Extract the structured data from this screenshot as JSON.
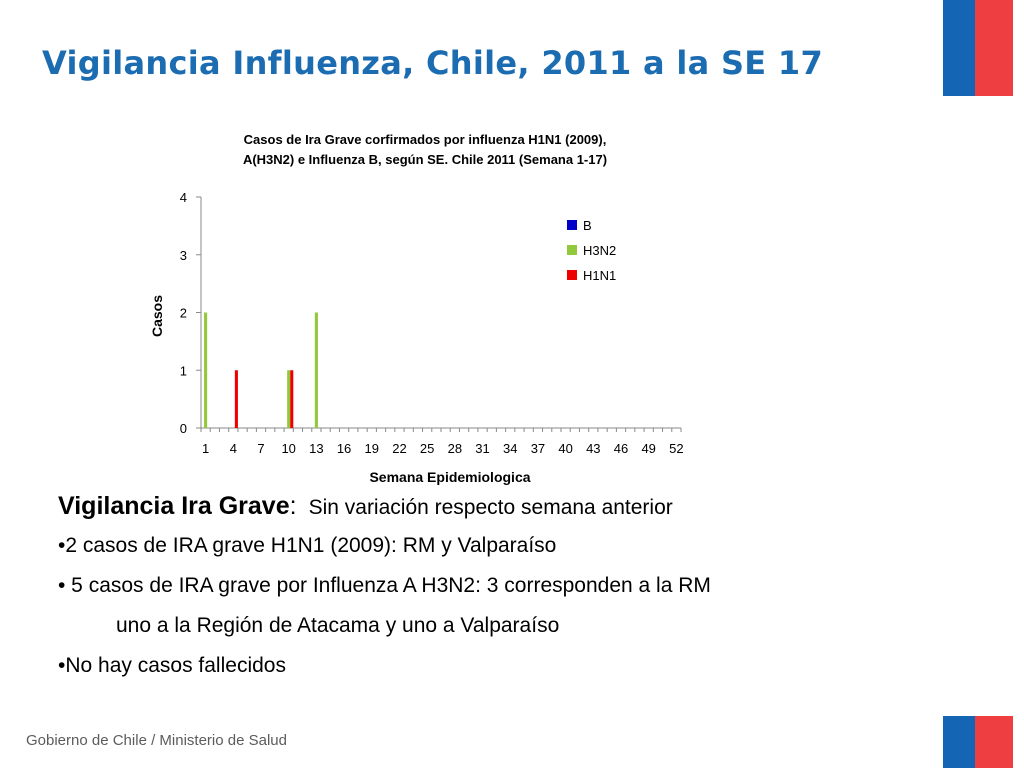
{
  "slide": {
    "title": "Vigilancia Influenza, Chile, 2011 a la SE 17",
    "footer": "Gobierno de Chile / Ministerio de Salud"
  },
  "colors": {
    "title": "#1b6cb1",
    "flag_blue": "#1565b5",
    "flag_red": "#ee3e42",
    "series_B": "#0000c8",
    "series_H3N2": "#92c83c",
    "series_H1N1": "#ee0000"
  },
  "chart_data": {
    "type": "bar",
    "title_lines": [
      "Casos de Ira Grave corfirmados por influenza H1N1 (2009),",
      "A(H3N2) e Influenza B, según SE. Chile 2011 (Semana 1-17)"
    ],
    "xlabel": "Semana Epidemiologica",
    "ylabel": "Casos",
    "ylim": [
      0,
      4
    ],
    "y_ticks": [
      "0",
      "1",
      "2",
      "3",
      "4"
    ],
    "x_range": [
      1,
      52
    ],
    "x_tick_labels": [
      "1",
      "4",
      "7",
      "10",
      "13",
      "16",
      "19",
      "22",
      "25",
      "28",
      "31",
      "34",
      "37",
      "40",
      "43",
      "46",
      "49",
      "52"
    ],
    "legend_position": "right",
    "grid": false,
    "series": [
      {
        "name": "B",
        "color": "#0000c8",
        "points": []
      },
      {
        "name": "H3N2",
        "color": "#92c83c",
        "points": [
          {
            "x": 1,
            "y": 2
          },
          {
            "x": 10,
            "y": 1
          },
          {
            "x": 13,
            "y": 2
          }
        ]
      },
      {
        "name": "H1N1",
        "color": "#ee0000",
        "points": [
          {
            "x": 4,
            "y": 1
          },
          {
            "x": 10,
            "y": 1
          }
        ]
      }
    ]
  },
  "body": {
    "lead_bold": "Vigilancia Ira Grave",
    "lead_colon": ":",
    "lead_sub": "Sin variación respecto semana anterior",
    "bullet1": "•2 casos de IRA grave H1N1 (2009): RM y Valparaíso",
    "bullet2": "• 5 casos de IRA grave por Influenza A H3N2:  3 corresponden a la RM",
    "bullet2_cont": "uno a la Región de Atacama y uno a Valparaíso",
    "bullet3": "•No hay casos fallecidos"
  }
}
